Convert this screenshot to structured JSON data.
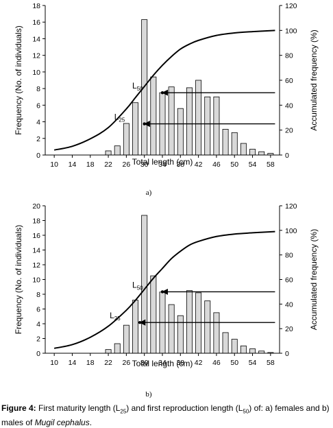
{
  "caption": {
    "label": "Figure 4:",
    "text_1": " First maturity length (L",
    "sub_1": "25",
    "text_2": ") and first reproduction length (L",
    "sub_2": "50",
    "text_3": ") of: a) females and b) males of ",
    "species": "Mugil cephalus",
    "text_4": "."
  },
  "chart_data": [
    {
      "panel": "a)",
      "type": "bar",
      "xlabel": "Total length (cm)",
      "ylabel": "Frequency (No. of individuals)",
      "y2label": "Accumulated frequency (%)",
      "x_ticks": [
        "10",
        "14",
        "18",
        "22",
        "26",
        "30",
        "34",
        "38",
        "42",
        "46",
        "50",
        "54",
        "58"
      ],
      "ylim": [
        0,
        18
      ],
      "y_ticks": [
        0,
        2,
        4,
        6,
        8,
        10,
        12,
        14,
        16,
        18
      ],
      "y2lim": [
        0,
        120
      ],
      "y2_ticks": [
        0,
        20,
        40,
        60,
        80,
        100,
        120
      ],
      "bars": {
        "x": [
          22,
          24,
          26,
          28,
          30,
          32,
          34,
          36,
          38,
          40,
          42,
          44,
          46,
          48,
          50,
          52,
          54,
          56,
          58
        ],
        "values": [
          0.5,
          1.1,
          3.8,
          6.3,
          16.3,
          9.4,
          7.5,
          8.2,
          5.6,
          8.1,
          9.0,
          7.0,
          7.0,
          3.1,
          2.7,
          1.4,
          0.7,
          0.4,
          0.2
        ]
      },
      "curve": {
        "x": [
          10,
          14,
          18,
          22,
          26,
          28,
          30,
          32,
          34,
          36,
          38,
          40,
          42,
          46,
          50,
          54,
          59
        ],
        "values": [
          4,
          7,
          13,
          22,
          37,
          46,
          55,
          64,
          72,
          79,
          85,
          89,
          92,
          96,
          98,
          99,
          100
        ]
      },
      "markers": [
        {
          "label": "L",
          "sub": "50",
          "y2": 50,
          "x_from": 59,
          "x_to": 34
        },
        {
          "label": "L",
          "sub": "25",
          "y2": 25,
          "x_from": 59,
          "x_to": 30
        }
      ]
    },
    {
      "panel": "b)",
      "type": "bar",
      "xlabel": "Total length (cm)",
      "ylabel": "Frequency (No. of individuals)",
      "y2label": "Accumulated frequency (%)",
      "x_ticks": [
        "10",
        "14",
        "18",
        "22",
        "26",
        "30",
        "34",
        "38",
        "42",
        "46",
        "50",
        "54",
        "58"
      ],
      "ylim": [
        0,
        20
      ],
      "y_ticks": [
        0,
        2,
        4,
        6,
        8,
        10,
        12,
        14,
        16,
        18,
        20
      ],
      "y2lim": [
        0,
        120
      ],
      "y2_ticks": [
        0,
        20,
        40,
        60,
        80,
        100,
        120
      ],
      "bars": {
        "x": [
          22,
          24,
          26,
          28,
          30,
          32,
          34,
          36,
          38,
          40,
          42,
          44,
          46,
          48,
          50,
          52,
          54,
          56,
          58
        ],
        "values": [
          0.5,
          1.3,
          3.8,
          7.2,
          18.7,
          10.5,
          8.3,
          6.6,
          5.1,
          8.5,
          8.2,
          7.1,
          5.5,
          2.8,
          1.9,
          1.0,
          0.6,
          0.3,
          0.1
        ]
      },
      "curve": {
        "x": [
          10,
          14,
          18,
          22,
          26,
          28,
          30,
          32,
          34,
          36,
          38,
          40,
          42,
          46,
          50,
          54,
          59
        ],
        "values": [
          4,
          7,
          13,
          22,
          35,
          43,
          52,
          61,
          69,
          77,
          83,
          88,
          91,
          95,
          97,
          98,
          99
        ]
      },
      "markers": [
        {
          "label": "L",
          "sub": "50",
          "y2": 50,
          "x_from": 59,
          "x_to": 34
        },
        {
          "label": "L",
          "sub": "25",
          "y2": 25,
          "x_from": 59,
          "x_to": 29
        }
      ]
    }
  ]
}
